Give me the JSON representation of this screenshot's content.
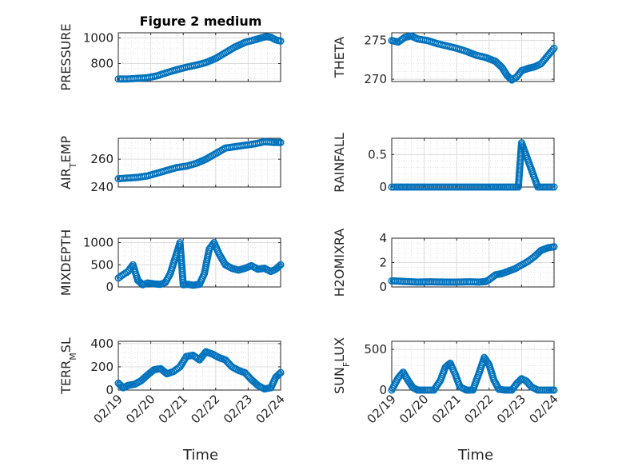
{
  "title": "Figure 2 medium",
  "series_color": "#0072BD",
  "x_tick_labels": [
    "02/19",
    "02/20",
    "02/21",
    "02/22",
    "02/23",
    "02/24"
  ],
  "xlabel": "Time",
  "chart_data": [
    {
      "type": "scatter",
      "ylabel": "PRESSURE",
      "ylim": [
        660,
        1040
      ],
      "yticks": [
        800,
        1000
      ],
      "grid": true,
      "x": [
        0.0,
        0.3,
        0.6,
        0.9,
        1.2,
        1.5,
        1.8,
        2.1,
        2.4,
        2.7,
        3.0,
        3.3,
        3.6,
        3.9,
        4.2,
        4.4,
        4.55,
        4.7,
        4.85,
        5.0
      ],
      "y": [
        680,
        680,
        685,
        690,
        705,
        730,
        752,
        772,
        788,
        808,
        840,
        885,
        930,
        965,
        985,
        1000,
        1010,
        1005,
        985,
        975
      ]
    },
    {
      "type": "scatter",
      "ylabel": "THETA",
      "ylim": [
        269.7,
        276
      ],
      "yticks": [
        270,
        275
      ],
      "grid": true,
      "x": [
        0.0,
        0.2,
        0.4,
        0.6,
        0.8,
        1.1,
        1.4,
        1.7,
        2.0,
        2.3,
        2.6,
        2.9,
        3.2,
        3.4,
        3.55,
        3.7,
        3.85,
        4.0,
        4.2,
        4.4,
        4.6,
        4.8,
        5.0
      ],
      "y": [
        275.0,
        274.8,
        275.4,
        275.6,
        275.2,
        275.0,
        274.6,
        274.3,
        274.0,
        273.6,
        273.1,
        272.8,
        272.3,
        271.5,
        270.5,
        269.9,
        270.3,
        271.1,
        271.4,
        271.6,
        272.0,
        273.0,
        274.0
      ]
    },
    {
      "type": "scatter",
      "ylabel": "AIR_TEMP",
      "ylim": [
        240,
        275
      ],
      "yticks": [
        240,
        260
      ],
      "grid": true,
      "x": [
        0.0,
        0.3,
        0.6,
        0.9,
        1.2,
        1.5,
        1.8,
        2.1,
        2.4,
        2.7,
        3.0,
        3.3,
        3.6,
        3.9,
        4.2,
        4.5,
        4.8,
        5.0
      ],
      "y": [
        246,
        246.5,
        247,
        248,
        250,
        252,
        254,
        255,
        257,
        260,
        264,
        268,
        269,
        270,
        271,
        272.5,
        272,
        272
      ]
    },
    {
      "type": "scatter",
      "ylabel": "RAINFALL",
      "ylim": [
        0,
        0.75
      ],
      "yticks": [
        0,
        0.5
      ],
      "grid": true,
      "x": [
        0.0,
        0.5,
        1.0,
        1.5,
        2.0,
        2.5,
        3.0,
        3.5,
        3.8,
        3.9,
        4.0,
        4.5,
        5.0
      ],
      "y": [
        0,
        0,
        0,
        0,
        0,
        0,
        0,
        0,
        0,
        0,
        0.68,
        0,
        0
      ]
    },
    {
      "type": "scatter",
      "ylabel": "MIXDEPTH",
      "ylim": [
        0,
        1100
      ],
      "yticks": [
        0,
        500,
        1000
      ],
      "grid": true,
      "x": [
        0.0,
        0.15,
        0.3,
        0.45,
        0.6,
        0.75,
        0.9,
        1.1,
        1.3,
        1.45,
        1.6,
        1.75,
        1.9,
        2.0,
        2.15,
        2.3,
        2.5,
        2.65,
        2.8,
        2.95,
        3.1,
        3.3,
        3.5,
        3.7,
        3.9,
        4.1,
        4.3,
        4.5,
        4.7,
        4.85,
        5.0
      ],
      "y": [
        200,
        280,
        350,
        500,
        150,
        50,
        90,
        70,
        60,
        100,
        300,
        650,
        1000,
        50,
        60,
        40,
        60,
        300,
        850,
        1000,
        750,
        500,
        420,
        380,
        420,
        480,
        400,
        420,
        350,
        400,
        500
      ]
    },
    {
      "type": "scatter",
      "ylabel": "H2OMIXRA",
      "ylim": [
        0,
        4
      ],
      "yticks": [
        0,
        2,
        4
      ],
      "grid": true,
      "x": [
        0.0,
        0.4,
        0.8,
        1.2,
        1.6,
        2.0,
        2.4,
        2.7,
        2.9,
        3.0,
        3.2,
        3.4,
        3.6,
        3.8,
        4.0,
        4.2,
        4.4,
        4.6,
        4.8,
        5.0
      ],
      "y": [
        0.5,
        0.45,
        0.4,
        0.42,
        0.4,
        0.4,
        0.42,
        0.4,
        0.45,
        0.6,
        1.0,
        1.1,
        1.3,
        1.5,
        1.8,
        2.1,
        2.5,
        3.0,
        3.2,
        3.3
      ]
    },
    {
      "type": "scatter",
      "ylabel": "TERR_MSL",
      "ylim": [
        0,
        420
      ],
      "yticks": [
        0,
        200,
        400
      ],
      "grid": true,
      "x": [
        0.0,
        0.15,
        0.3,
        0.5,
        0.7,
        0.9,
        1.1,
        1.3,
        1.5,
        1.7,
        1.9,
        2.1,
        2.3,
        2.5,
        2.7,
        2.9,
        3.1,
        3.3,
        3.5,
        3.7,
        3.9,
        4.1,
        4.3,
        4.5,
        4.7,
        4.85,
        5.0
      ],
      "y": [
        60,
        20,
        40,
        50,
        80,
        130,
        175,
        185,
        140,
        160,
        200,
        290,
        300,
        260,
        330,
        310,
        280,
        260,
        200,
        170,
        150,
        90,
        40,
        10,
        20,
        110,
        150
      ]
    },
    {
      "type": "scatter",
      "ylabel": "SUN_FLUX",
      "ylim": [
        0,
        600
      ],
      "yticks": [
        0,
        500
      ],
      "grid": true,
      "x": [
        0.0,
        0.2,
        0.35,
        0.5,
        0.65,
        0.8,
        1.0,
        1.3,
        1.5,
        1.65,
        1.8,
        1.95,
        2.1,
        2.3,
        2.5,
        2.7,
        2.85,
        3.0,
        3.15,
        3.3,
        3.5,
        3.7,
        3.85,
        4.0,
        4.15,
        4.3,
        4.5,
        4.8,
        5.0
      ],
      "y": [
        0,
        150,
        220,
        120,
        30,
        0,
        0,
        0,
        120,
        280,
        330,
        200,
        40,
        0,
        0,
        220,
        400,
        310,
        120,
        10,
        0,
        0,
        80,
        140,
        110,
        40,
        0,
        0,
        0
      ]
    }
  ]
}
